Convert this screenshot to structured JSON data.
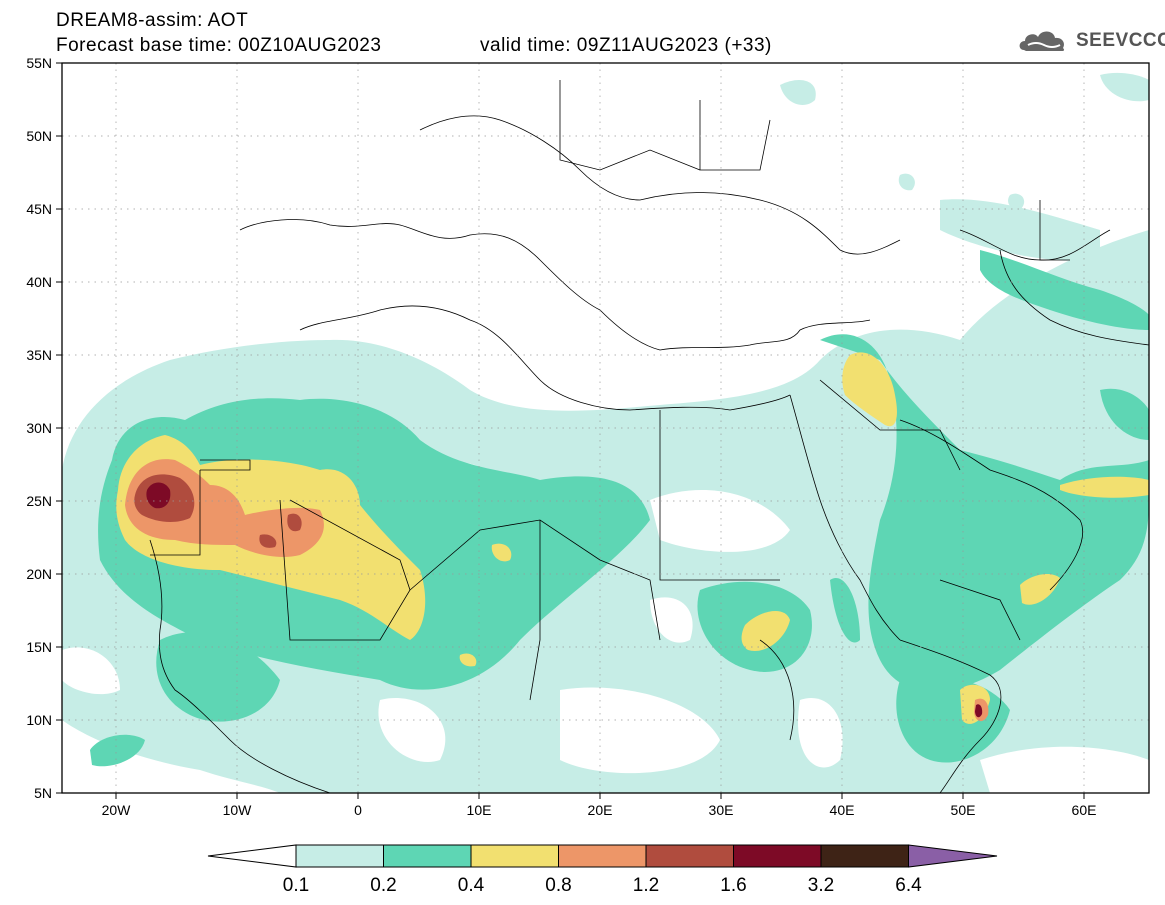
{
  "header": {
    "title_line1": "DREAM8-assim: AOT",
    "title_line2": "Forecast base time: 00Z10AUG2023",
    "valid_time": "valid time: 09Z11AUG2023 (+33)",
    "logo_text": "SEEVCCC"
  },
  "map": {
    "lat_labels": [
      "55N",
      "50N",
      "45N",
      "40N",
      "35N",
      "30N",
      "25N",
      "20N",
      "15N",
      "10N",
      "5N"
    ],
    "lon_labels": [
      "20W",
      "10W",
      "0",
      "10E",
      "20E",
      "30E",
      "40E",
      "50E",
      "60E"
    ]
  },
  "legend": {
    "levels": [
      "0.1",
      "0.2",
      "0.4",
      "0.8",
      "1.2",
      "1.6",
      "3.2",
      "6.4"
    ],
    "colors": [
      "#c6ede6",
      "#5ed6b4",
      "#f2e070",
      "#ed9668",
      "#b04c3e",
      "#7d0a26",
      "#3e2316",
      "#8a5fa6"
    ]
  }
}
